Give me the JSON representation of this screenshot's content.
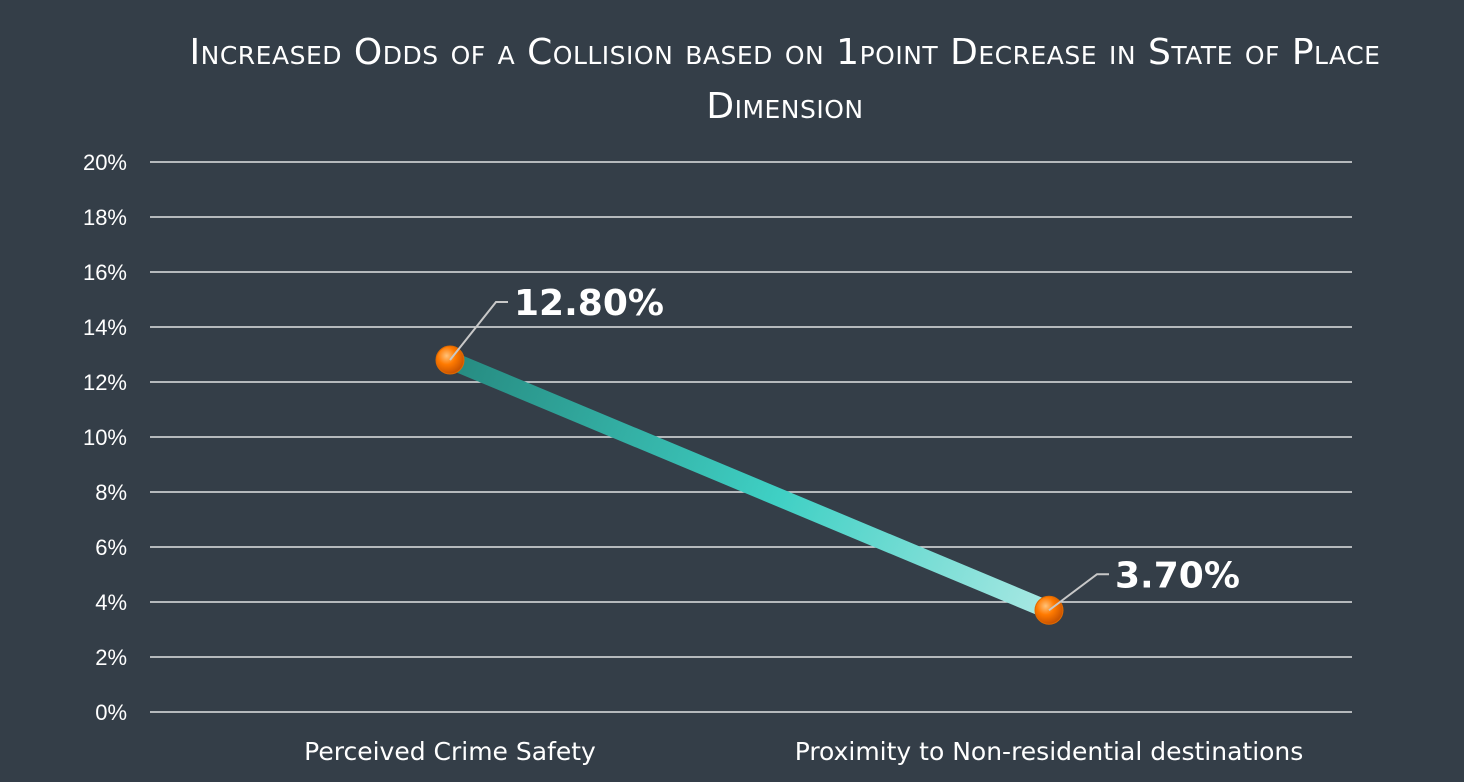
{
  "chart_data": {
    "type": "line",
    "title": "Increased Odds of a Collision based on 1point Decrease in State of Place Dimension",
    "categories": [
      "Perceived Crime Safety",
      "Proximity to Non-residential destinations"
    ],
    "values": [
      12.8,
      3.7
    ],
    "data_labels": [
      "12.80%",
      "3.70%"
    ],
    "y_ticks": [
      "0%",
      "2%",
      "4%",
      "6%",
      "8%",
      "10%",
      "12%",
      "14%",
      "16%",
      "18%",
      "20%"
    ],
    "ylim": [
      0,
      20
    ],
    "ytick_step": 2,
    "grid": true,
    "legend": "none",
    "colors": {
      "background": "#343e48",
      "gridline": "#ffffff",
      "line_start": "#268a80",
      "line_mid": "#3fd0c4",
      "line_end": "#a8e8e3",
      "marker": "#ff7a00",
      "leader": "#c8c8c8"
    }
  }
}
